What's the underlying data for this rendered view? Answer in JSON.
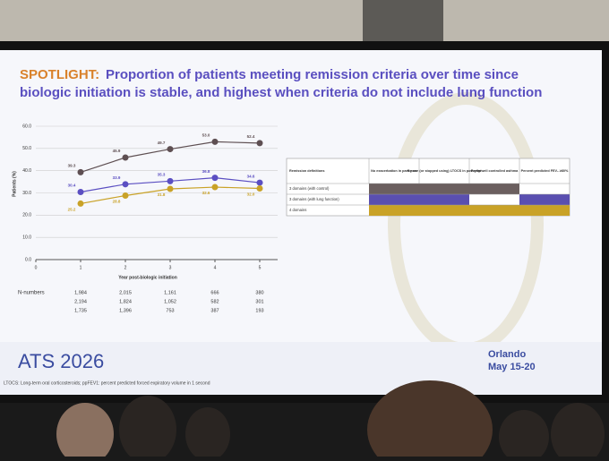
{
  "slide": {
    "title_lead": "SPOTLIGHT:",
    "title_rest_1": "Proportion of patients meeting remission criteria over time since",
    "title_rest_2": "biologic initiation is stable, and highest when criteria do not include lung function",
    "logo": "ATS 2026",
    "city": "Orlando",
    "dates": "May 15-20",
    "footnote": "LTOCS: Long-term oral corticosteroids; ppFEV1: percent predicted forced expiratory volume in 1 second"
  },
  "table": {
    "header": [
      "Remission definitions",
      "No exacerbation in past year",
      "No use (or stopped using) LTOCS in past year",
      "Partly/well controlled asthma",
      "Percent predicted FEV₁ ≥80%"
    ],
    "rows": [
      "3 domains (with control)",
      "3 domains (with lung function)",
      "4 domains"
    ]
  },
  "chart_data": {
    "type": "line",
    "y_label": "Patients (%)",
    "x_label": "Year post-biologic initiation",
    "x": [
      1,
      2,
      3,
      4,
      5
    ],
    "xlim": [
      0,
      5.4
    ],
    "xticks": [
      0,
      1,
      2,
      3,
      4,
      5
    ],
    "ylim": [
      0,
      60
    ],
    "yticks": [
      {
        "value": 0,
        "label": "0.0"
      },
      {
        "value": 10,
        "label": "10.0"
      },
      {
        "value": 20,
        "label": "20.0"
      },
      {
        "value": 30,
        "label": "30.0"
      },
      {
        "value": 40,
        "label": "40.0"
      },
      {
        "value": 50,
        "label": "50.0"
      },
      {
        "value": 60,
        "label": "60.0"
      }
    ],
    "grid": true,
    "series": [
      {
        "color": "#5e4f52",
        "values": [
          39.3,
          45.9,
          49.7,
          53.0,
          52.4
        ],
        "value_labels": [
          "39.3",
          "45.9",
          "49.7",
          "53.0",
          "52.4"
        ]
      },
      {
        "color": "#5b4fc2",
        "values": [
          30.4,
          33.9,
          35.3,
          36.8,
          34.6
        ],
        "value_labels": [
          "30.4",
          "33.9",
          "35.3",
          "36.8",
          "34.6"
        ]
      },
      {
        "color": "#c9a227",
        "values": [
          25.2,
          28.8,
          31.8,
          32.6,
          32.0
        ],
        "value_labels": [
          "25.2",
          "28.8",
          "31.8",
          "32.6",
          "32.0"
        ]
      }
    ],
    "n_numbers": {
      "label": "N-numbers",
      "rows": [
        [
          "1,984",
          "2,015",
          "1,161",
          "666",
          "380"
        ],
        [
          "2,194",
          "1,824",
          "1,052",
          "582",
          "301"
        ],
        [
          "1,735",
          "1,396",
          "753",
          "387",
          "193"
        ]
      ]
    }
  }
}
